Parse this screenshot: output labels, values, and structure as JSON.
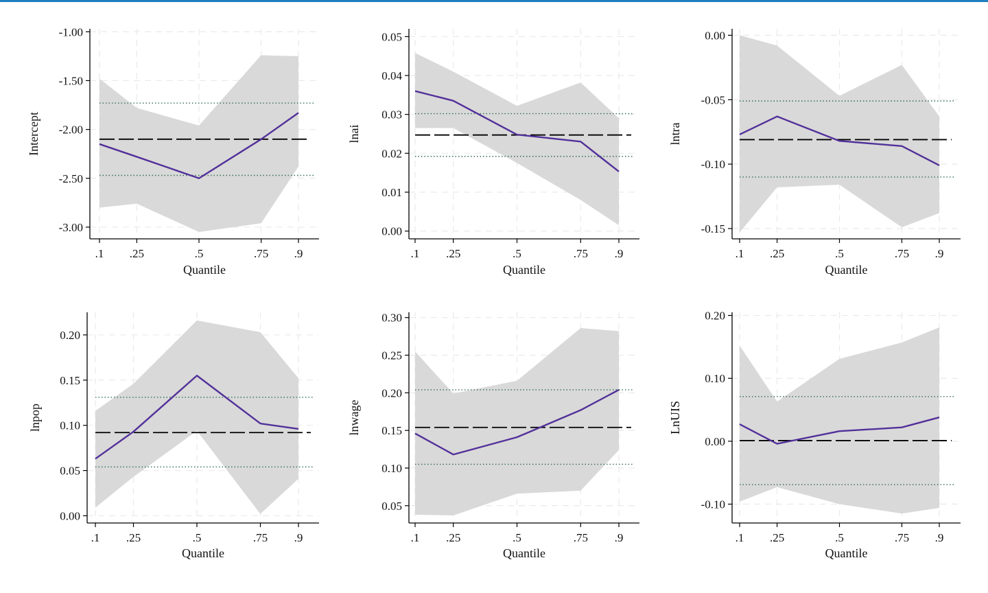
{
  "colors": {
    "top_bar": "#1f7fc0",
    "estimate_line": "#52309a",
    "band_fill": "#d9d9d9",
    "ols_line": "#000000",
    "ols_ci": "#2e6b4e"
  },
  "chart_data": [
    {
      "type": "line",
      "panel": "top-left",
      "ylabel": "Intercept",
      "xlabel": "Quantile",
      "x": [
        0.1,
        0.25,
        0.5,
        0.75,
        0.9
      ],
      "x_tick_labels": [
        ".1",
        ".25",
        ".5",
        ".75",
        ".9"
      ],
      "ylim": [
        -3.12,
        -0.97
      ],
      "y_ticks": [
        -1.0,
        -1.5,
        -2.0,
        -2.5,
        -3.0
      ],
      "y_tick_labels": [
        "-1.00",
        "-1.50",
        "-2.00",
        "-2.50",
        "-3.00"
      ],
      "quantile_estimate": [
        -2.15,
        -2.28,
        -2.5,
        -2.1,
        -1.83
      ],
      "ci_lower": [
        -2.8,
        -2.76,
        -3.05,
        -2.96,
        -2.38
      ],
      "ci_upper": [
        -1.48,
        -1.78,
        -1.96,
        -1.24,
        -1.25
      ],
      "ols_estimate": -2.1,
      "ols_ci": [
        -2.47,
        -1.73
      ]
    },
    {
      "type": "line",
      "panel": "top-middle",
      "ylabel": "lnai",
      "xlabel": "Quantile",
      "x": [
        0.1,
        0.25,
        0.5,
        0.75,
        0.9
      ],
      "x_tick_labels": [
        ".1",
        ".25",
        ".5",
        ".75",
        ".9"
      ],
      "ylim": [
        -0.002,
        0.052
      ],
      "y_ticks": [
        0.0,
        0.01,
        0.02,
        0.03,
        0.04,
        0.05
      ],
      "y_tick_labels": [
        "0.00",
        "0.01",
        "0.02",
        "0.03",
        "0.04",
        "0.05"
      ],
      "quantile_estimate": [
        0.036,
        0.0335,
        0.0248,
        0.023,
        0.0153
      ],
      "ci_lower": [
        0.0265,
        0.0265,
        0.0175,
        0.008,
        0.0015
      ],
      "ci_upper": [
        0.0458,
        0.041,
        0.0322,
        0.0382,
        0.029
      ],
      "ols_estimate": 0.0247,
      "ols_ci": [
        0.0192,
        0.0302
      ]
    },
    {
      "type": "line",
      "panel": "top-right",
      "ylabel": "lntra",
      "xlabel": "Quantile",
      "x": [
        0.1,
        0.25,
        0.5,
        0.75,
        0.9
      ],
      "x_tick_labels": [
        ".1",
        ".25",
        ".5",
        ".75",
        ".9"
      ],
      "ylim": [
        -0.158,
        0.005
      ],
      "y_ticks": [
        0.0,
        -0.05,
        -0.1,
        -0.15
      ],
      "y_tick_labels": [
        "0.00",
        "-0.05",
        "-0.10",
        "-0.15"
      ],
      "quantile_estimate": [
        -0.077,
        -0.063,
        -0.082,
        -0.086,
        -0.101
      ],
      "ci_lower": [
        -0.153,
        -0.118,
        -0.116,
        -0.149,
        -0.138
      ],
      "ci_upper": [
        0.0,
        -0.008,
        -0.047,
        -0.023,
        -0.063
      ],
      "ols_estimate": -0.081,
      "ols_ci": [
        -0.11,
        -0.051
      ]
    },
    {
      "type": "line",
      "panel": "bottom-left",
      "ylabel": "lnpop",
      "xlabel": "Quantile",
      "x": [
        0.1,
        0.25,
        0.5,
        0.75,
        0.9
      ],
      "x_tick_labels": [
        ".1",
        ".25",
        ".5",
        ".75",
        ".9"
      ],
      "ylim": [
        -0.008,
        0.225
      ],
      "y_ticks": [
        0.0,
        0.05,
        0.1,
        0.15,
        0.2
      ],
      "y_tick_labels": [
        "0.00",
        "0.05",
        "0.10",
        "0.15",
        "0.20"
      ],
      "quantile_estimate": [
        0.063,
        0.093,
        0.155,
        0.102,
        0.096
      ],
      "ci_lower": [
        0.009,
        0.043,
        0.094,
        0.002,
        0.041
      ],
      "ci_upper": [
        0.116,
        0.146,
        0.216,
        0.203,
        0.152
      ],
      "ols_estimate": 0.092,
      "ols_ci": [
        0.054,
        0.131
      ]
    },
    {
      "type": "line",
      "panel": "bottom-middle",
      "ylabel": "lnwage",
      "xlabel": "Quantile",
      "x": [
        0.1,
        0.25,
        0.5,
        0.75,
        0.9
      ],
      "x_tick_labels": [
        ".1",
        ".25",
        ".5",
        ".75",
        ".9"
      ],
      "ylim": [
        0.027,
        0.307
      ],
      "y_ticks": [
        0.05,
        0.1,
        0.15,
        0.2,
        0.25,
        0.3
      ],
      "y_tick_labels": [
        "0.05",
        "0.10",
        "0.15",
        "0.20",
        "0.25",
        "0.30"
      ],
      "quantile_estimate": [
        0.146,
        0.118,
        0.141,
        0.177,
        0.204
      ],
      "ci_lower": [
        0.038,
        0.037,
        0.066,
        0.07,
        0.124
      ],
      "ci_upper": [
        0.255,
        0.199,
        0.216,
        0.286,
        0.282
      ],
      "ols_estimate": 0.154,
      "ols_ci": [
        0.105,
        0.204
      ]
    },
    {
      "type": "line",
      "panel": "bottom-right",
      "ylabel": "LnUIS",
      "xlabel": "Quantile",
      "x": [
        0.1,
        0.25,
        0.5,
        0.75,
        0.9
      ],
      "x_tick_labels": [
        ".1",
        ".25",
        ".5",
        ".75",
        ".9"
      ],
      "ylim": [
        -0.13,
        0.205
      ],
      "y_ticks": [
        0.2,
        0.1,
        0.0,
        -0.1
      ],
      "y_tick_labels": [
        "0.20",
        "0.10",
        "0.00",
        "-0.10"
      ],
      "quantile_estimate": [
        0.027,
        -0.004,
        0.016,
        0.022,
        0.038
      ],
      "ci_lower": [
        -0.096,
        -0.073,
        -0.1,
        -0.115,
        -0.106
      ],
      "ci_upper": [
        0.152,
        0.063,
        0.131,
        0.157,
        0.181
      ],
      "ols_estimate": 0.001,
      "ols_ci": [
        -0.069,
        0.071
      ]
    }
  ]
}
